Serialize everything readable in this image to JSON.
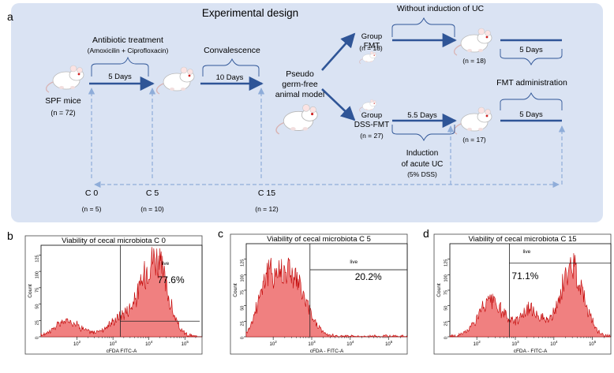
{
  "panel_labels": {
    "a": "a",
    "b": "b",
    "c": "c",
    "d": "d"
  },
  "design": {
    "title": "Experimental design",
    "stage_spf": {
      "label": "SPF mice",
      "n": "(n = 72)"
    },
    "antibiotic": {
      "title": "Antibiotic treatment",
      "drugs": "(Amoxicilin + Ciprofloxacin)",
      "duration": "5 Days"
    },
    "convalescence": {
      "title": "Convalescence",
      "duration": "10 Days"
    },
    "pseudo": {
      "line1": "Pseudo",
      "line2": "germ-free",
      "line3": "animal model"
    },
    "group_fmt": {
      "line1": "Group",
      "line2": "FMT",
      "n": "(n = 18)"
    },
    "group_dss": {
      "line1": "Group",
      "line2": "DSS-FMT",
      "n": "(n = 27)"
    },
    "without_uc": "Without induction of UC",
    "dss_duration": "5.5 Days",
    "induction": {
      "line1": "Induction",
      "line2": "of acute UC",
      "line3": "(5% DSS)"
    },
    "fmt_top": {
      "n": "(n = 18)",
      "duration": "5 Days"
    },
    "fmt_bottom": {
      "n": "(n = 17)",
      "duration": "5 Days"
    },
    "fmt_admin": "FMT administration",
    "timepoints": [
      {
        "label": "C 0",
        "n": "(n = 5)"
      },
      {
        "label": "C 5",
        "n": "(n = 10)"
      },
      {
        "label": "C 15",
        "n": "(n = 12)"
      }
    ]
  },
  "colors": {
    "arrow": "#2f5597",
    "dashed": "#8fadd9",
    "hist_fill": "#f08080",
    "hist_line": "#c00000",
    "bg": "#dae3f3"
  },
  "chart_data": [
    {
      "type": "area",
      "title": "Viability of cecal microbiota C 0",
      "xlabel": "cFDA FITC-A",
      "ylabel": "Count",
      "x_scale": "log",
      "xlim": [
        10,
        300000
      ],
      "ylim": [
        0,
        140
      ],
      "x_ticks": [
        100,
        1000,
        10000,
        100000
      ],
      "y_ticks": [
        0,
        25,
        50,
        75,
        100,
        125
      ],
      "gate_label": "live",
      "gate_percent": "77.6%",
      "gate_start": 1600,
      "components": [
        {
          "center": 55,
          "width": 0.35,
          "height": 25
        },
        {
          "center": 15000,
          "width": 0.33,
          "height": 118
        },
        {
          "center": 2500,
          "width": 0.45,
          "height": 35
        }
      ]
    },
    {
      "type": "area",
      "title": "Viability of cecal microbiota C 5",
      "xlabel": "cFDA - FITC-A",
      "ylabel": "Count",
      "x_scale": "log",
      "xlim": [
        20,
        300000
      ],
      "ylim": [
        0,
        150
      ],
      "x_ticks": [
        100,
        1000,
        10000,
        100000
      ],
      "y_ticks": [
        0,
        25,
        50,
        75,
        100,
        125
      ],
      "gate_label": "live",
      "gate_percent": "20.2%",
      "gate_start": 900,
      "components": [
        {
          "center": 230,
          "width": 0.42,
          "height": 112
        },
        {
          "center": 60,
          "width": 0.2,
          "height": 55
        }
      ]
    },
    {
      "type": "area",
      "title": "Viability of cecal microbiota C 15",
      "xlabel": "cFDA - FITC-A",
      "ylabel": "Count",
      "x_scale": "log",
      "xlim": [
        20,
        300000
      ],
      "ylim": [
        0,
        150
      ],
      "x_ticks": [
        100,
        1000,
        10000,
        100000
      ],
      "y_ticks": [
        0,
        25,
        50,
        75,
        100,
        125
      ],
      "gate_label": "live",
      "gate_percent": "71.1%",
      "gate_start": 700,
      "components": [
        {
          "center": 230,
          "width": 0.33,
          "height": 58
        },
        {
          "center": 2500,
          "width": 0.3,
          "height": 45
        },
        {
          "center": 30000,
          "width": 0.3,
          "height": 115
        }
      ]
    }
  ]
}
